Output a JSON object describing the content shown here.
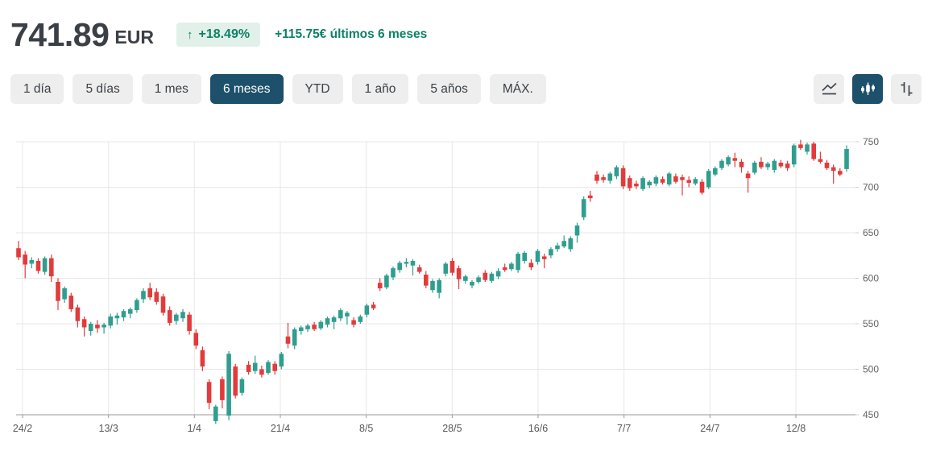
{
  "header": {
    "price": "741.89",
    "currency": "EUR",
    "change_arrow": "↑",
    "change_percent": "+18.49%",
    "change_text": "+115.75€ últimos 6 meses"
  },
  "toolbar": {
    "ranges": [
      {
        "label": "1 día",
        "active": false
      },
      {
        "label": "5 días",
        "active": false
      },
      {
        "label": "1 mes",
        "active": false
      },
      {
        "label": "6 meses",
        "active": true
      },
      {
        "label": "YTD",
        "active": false
      },
      {
        "label": "1 año",
        "active": false
      },
      {
        "label": "5 años",
        "active": false
      },
      {
        "label": "MÁX.",
        "active": false
      }
    ],
    "chart_types": [
      {
        "icon": "line-chart",
        "active": false
      },
      {
        "icon": "candlestick",
        "active": true
      },
      {
        "icon": "ohlc",
        "active": false
      }
    ]
  },
  "colors": {
    "accent_blue": "#1c506b",
    "positive": "#0d8166",
    "badge_bg": "#e2f0ea",
    "candle_up": "#2f9e8f",
    "candle_down": "#e23b3c",
    "grid_line": "#e7e7e7",
    "axis_line": "#9a9a9a"
  },
  "chart_data": {
    "type": "candlestick",
    "title": "",
    "xlabel": "",
    "ylabel": "",
    "grid": true,
    "legend": false,
    "x_ticks": [
      "24/2",
      "13/3",
      "1/4",
      "21/4",
      "8/5",
      "28/5",
      "16/6",
      "7/7",
      "24/7",
      "12/8"
    ],
    "y_ticks": [
      750,
      700,
      650,
      600,
      550,
      500,
      450
    ],
    "ylim": [
      450,
      750
    ],
    "candles_format": "[open, high, low, close] in EUR, one trading day per candle, 6 months",
    "candles": [
      [
        633,
        641,
        620,
        623
      ],
      [
        626,
        630,
        600,
        615
      ],
      [
        616,
        623,
        611,
        620
      ],
      [
        619,
        622,
        605,
        608
      ],
      [
        607,
        624,
        604,
        622
      ],
      [
        622,
        626,
        596,
        602
      ],
      [
        596,
        600,
        565,
        575
      ],
      [
        577,
        591,
        573,
        589
      ],
      [
        581,
        584,
        563,
        566
      ],
      [
        568,
        571,
        546,
        553
      ],
      [
        555,
        558,
        536,
        546
      ],
      [
        542,
        552,
        537,
        550
      ],
      [
        549,
        554,
        540,
        545
      ],
      [
        546,
        551,
        539,
        549
      ],
      [
        548,
        561,
        545,
        558
      ],
      [
        556,
        562,
        549,
        559
      ],
      [
        557,
        566,
        553,
        564
      ],
      [
        561,
        568,
        556,
        566
      ],
      [
        565,
        578,
        562,
        576
      ],
      [
        577,
        589,
        573,
        586
      ],
      [
        589,
        595,
        576,
        579
      ],
      [
        585,
        589,
        571,
        574
      ],
      [
        580,
        583,
        559,
        562
      ],
      [
        565,
        569,
        548,
        551
      ],
      [
        553,
        562,
        549,
        560
      ],
      [
        556,
        566,
        552,
        563
      ],
      [
        560,
        563,
        538,
        542
      ],
      [
        540,
        544,
        522,
        526
      ],
      [
        521,
        525,
        498,
        503
      ],
      [
        486,
        489,
        456,
        463
      ],
      [
        443,
        461,
        440,
        459
      ],
      [
        489,
        492,
        457,
        466
      ],
      [
        449,
        520,
        444,
        517
      ],
      [
        503,
        506,
        468,
        471
      ],
      [
        474,
        491,
        471,
        489
      ],
      [
        505,
        509,
        494,
        497
      ],
      [
        498,
        515,
        495,
        507
      ],
      [
        500,
        504,
        491,
        494
      ],
      [
        496,
        510,
        494,
        508
      ],
      [
        506,
        509,
        494,
        498
      ],
      [
        503,
        519,
        500,
        517
      ],
      [
        536,
        551,
        523,
        528
      ],
      [
        526,
        546,
        522,
        544
      ],
      [
        542,
        548,
        538,
        546
      ],
      [
        544,
        550,
        541,
        548
      ],
      [
        549,
        552,
        542,
        544
      ],
      [
        545,
        554,
        543,
        552
      ],
      [
        549,
        558,
        546,
        556
      ],
      [
        552,
        559,
        544,
        557
      ],
      [
        556,
        567,
        553,
        565
      ],
      [
        558,
        564,
        549,
        562
      ],
      [
        554,
        557,
        546,
        549
      ],
      [
        552,
        560,
        550,
        558
      ],
      [
        560,
        572,
        557,
        570
      ],
      [
        571,
        574,
        565,
        567
      ],
      [
        595,
        600,
        586,
        589
      ],
      [
        590,
        605,
        588,
        603
      ],
      [
        601,
        613,
        598,
        611
      ],
      [
        609,
        619,
        606,
        617
      ],
      [
        616,
        622,
        612,
        618
      ],
      [
        614,
        621,
        603,
        619
      ],
      [
        612,
        615,
        605,
        607
      ],
      [
        604,
        608,
        589,
        592
      ],
      [
        587,
        599,
        584,
        597
      ],
      [
        584,
        600,
        578,
        598
      ],
      [
        605,
        618,
        602,
        616
      ],
      [
        619,
        622,
        603,
        606
      ],
      [
        611,
        614,
        588,
        599
      ],
      [
        597,
        604,
        594,
        602
      ],
      [
        592,
        598,
        589,
        596
      ],
      [
        596,
        603,
        594,
        601
      ],
      [
        606,
        609,
        596,
        598
      ],
      [
        597,
        607,
        595,
        605
      ],
      [
        602,
        611,
        599,
        608
      ],
      [
        612,
        616,
        607,
        609
      ],
      [
        610,
        618,
        608,
        616
      ],
      [
        609,
        629,
        606,
        627
      ],
      [
        619,
        630,
        616,
        628
      ],
      [
        617,
        621,
        609,
        612
      ],
      [
        618,
        632,
        615,
        630
      ],
      [
        624,
        627,
        611,
        621
      ],
      [
        625,
        634,
        622,
        632
      ],
      [
        632,
        639,
        629,
        636
      ],
      [
        635,
        647,
        633,
        641
      ],
      [
        632,
        646,
        629,
        644
      ],
      [
        647,
        661,
        639,
        658
      ],
      [
        667,
        690,
        664,
        687
      ],
      [
        691,
        696,
        684,
        688
      ],
      [
        714,
        718,
        704,
        707
      ],
      [
        711,
        714,
        705,
        708
      ],
      [
        707,
        717,
        704,
        715
      ],
      [
        712,
        724,
        709,
        722
      ],
      [
        721,
        724,
        698,
        701
      ],
      [
        710,
        713,
        696,
        699
      ],
      [
        704,
        707,
        698,
        701
      ],
      [
        698,
        712,
        696,
        710
      ],
      [
        702,
        708,
        699,
        706
      ],
      [
        704,
        713,
        701,
        711
      ],
      [
        709,
        712,
        703,
        705
      ],
      [
        703,
        717,
        701,
        715
      ],
      [
        712,
        715,
        704,
        706
      ],
      [
        711,
        714,
        691,
        708
      ],
      [
        708,
        712,
        700,
        705
      ],
      [
        704,
        711,
        702,
        709
      ],
      [
        706,
        709,
        692,
        694
      ],
      [
        700,
        720,
        698,
        718
      ],
      [
        714,
        723,
        712,
        721
      ],
      [
        721,
        731,
        719,
        729
      ],
      [
        725,
        735,
        723,
        733
      ],
      [
        732,
        738,
        722,
        729
      ],
      [
        728,
        731,
        716,
        722
      ],
      [
        715,
        718,
        694,
        710
      ],
      [
        716,
        729,
        714,
        727
      ],
      [
        728,
        733,
        720,
        722
      ],
      [
        722,
        728,
        719,
        726
      ],
      [
        719,
        731,
        716,
        729
      ],
      [
        727,
        730,
        721,
        723
      ],
      [
        726,
        729,
        718,
        721
      ],
      [
        725,
        748,
        722,
        746
      ],
      [
        747,
        752,
        741,
        743
      ],
      [
        739,
        749,
        736,
        747
      ],
      [
        748,
        750,
        729,
        731
      ],
      [
        731,
        739,
        726,
        728
      ],
      [
        727,
        730,
        719,
        721
      ],
      [
        722,
        725,
        704,
        718
      ],
      [
        718,
        721,
        712,
        714
      ],
      [
        720,
        746,
        717,
        742
      ]
    ]
  }
}
